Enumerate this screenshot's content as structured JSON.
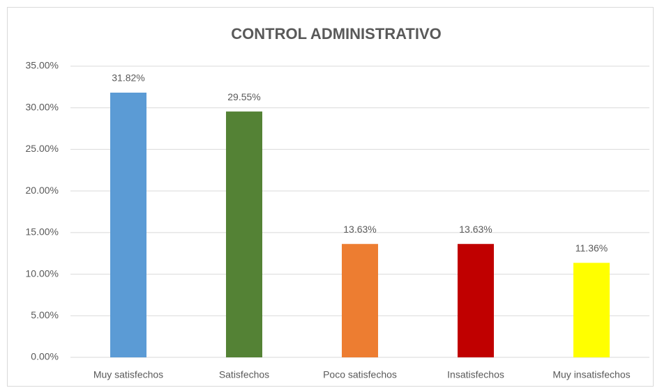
{
  "chart_data": {
    "type": "bar",
    "title": "CONTROL ADMINISTRATIVO",
    "categories": [
      "Muy satisfechos",
      "Satisfechos",
      "Poco satisfechos",
      "Insatisfechos",
      "Muy insatisfechos"
    ],
    "values": [
      31.82,
      29.55,
      13.63,
      13.63,
      11.36
    ],
    "value_labels": [
      "31.82%",
      "29.55%",
      "13.63%",
      "13.63%",
      "11.36%"
    ],
    "colors": [
      "#5b9bd5",
      "#548235",
      "#ed7d31",
      "#c00000",
      "#ffff00"
    ],
    "ylim": [
      0,
      35
    ],
    "yticks": [
      {
        "value": 0,
        "label": "0.00%"
      },
      {
        "value": 5,
        "label": "5.00%"
      },
      {
        "value": 10,
        "label": "10.00%"
      },
      {
        "value": 15,
        "label": "15.00%"
      },
      {
        "value": 20,
        "label": "20.00%"
      },
      {
        "value": 25,
        "label": "25.00%"
      },
      {
        "value": 30,
        "label": "30.00%"
      },
      {
        "value": 35,
        "label": "35.00%"
      }
    ],
    "grid": true
  }
}
